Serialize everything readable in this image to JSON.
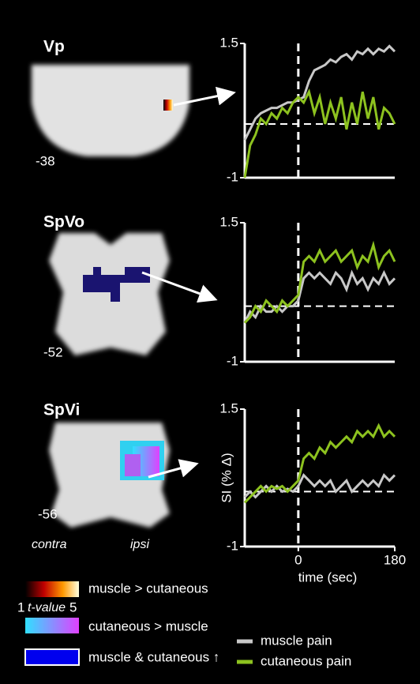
{
  "chart_data": [
    {
      "type": "line",
      "x": [
        -100,
        -90,
        -80,
        -70,
        -60,
        -50,
        -40,
        -30,
        -20,
        -10,
        0,
        10,
        20,
        30,
        40,
        50,
        60,
        70,
        80,
        90,
        100,
        110,
        120,
        130,
        140,
        150,
        160,
        170,
        180
      ],
      "xlim": [
        -100,
        180
      ],
      "ylim": [
        -1,
        1.5
      ],
      "yticks": [
        -1,
        1.5
      ],
      "reference_lines": {
        "x": 0,
        "y": 0
      },
      "series": [
        {
          "name": "muscle pain",
          "color": "#c8c8c8",
          "values": [
            -0.3,
            -0.1,
            0.1,
            0.2,
            0.25,
            0.3,
            0.3,
            0.35,
            0.4,
            0.4,
            0.45,
            0.5,
            0.8,
            1.0,
            1.05,
            1.1,
            1.2,
            1.15,
            1.25,
            1.3,
            1.2,
            1.35,
            1.3,
            1.4,
            1.3,
            1.4,
            1.35,
            1.45,
            1.35
          ]
        },
        {
          "name": "cutaneous pain",
          "color": "#8dc21f",
          "values": [
            -1,
            -0.4,
            -0.2,
            0.1,
            0,
            0.2,
            0.1,
            0.3,
            0.2,
            0.4,
            0.5,
            0.4,
            0.6,
            0.2,
            0.5,
            0,
            0.4,
            0.1,
            0.5,
            -0.1,
            0.4,
            0,
            0.6,
            0.1,
            0.5,
            -0.1,
            0.3,
            0.2,
            0
          ]
        }
      ]
    },
    {
      "type": "line",
      "x": [
        -100,
        -90,
        -80,
        -70,
        -60,
        -50,
        -40,
        -30,
        -20,
        -10,
        0,
        10,
        20,
        30,
        40,
        50,
        60,
        70,
        80,
        90,
        100,
        110,
        120,
        130,
        140,
        150,
        160,
        170,
        180
      ],
      "xlim": [
        -100,
        180
      ],
      "ylim": [
        -1,
        1.5
      ],
      "yticks": [
        -1,
        1.5
      ],
      "reference_lines": {
        "x": 0,
        "y": 0
      },
      "series": [
        {
          "name": "muscle pain",
          "color": "#c8c8c8",
          "values": [
            -0.3,
            -0.1,
            -0.2,
            0,
            -0.1,
            -0.1,
            0,
            -0.1,
            0,
            0,
            0.1,
            0.5,
            0.6,
            0.5,
            0.6,
            0.5,
            0.4,
            0.6,
            0.5,
            0.3,
            0.6,
            0.4,
            0.5,
            0.3,
            0.5,
            0.4,
            0.6,
            0.4,
            0.5
          ]
        },
        {
          "name": "cutaneous pain",
          "color": "#8dc21f",
          "values": [
            -0.3,
            -0.2,
            0,
            -0.1,
            0.1,
            0,
            -0.1,
            0.1,
            0,
            0.1,
            0.2,
            0.8,
            0.9,
            0.8,
            1.0,
            0.8,
            0.9,
            1.0,
            0.8,
            0.9,
            1.0,
            0.7,
            0.9,
            0.8,
            1.1,
            0.7,
            0.9,
            1.0,
            0.8
          ]
        }
      ]
    },
    {
      "type": "line",
      "x": [
        -100,
        -90,
        -80,
        -70,
        -60,
        -50,
        -40,
        -30,
        -20,
        -10,
        0,
        10,
        20,
        30,
        40,
        50,
        60,
        70,
        80,
        90,
        100,
        110,
        120,
        130,
        140,
        150,
        160,
        170,
        180
      ],
      "xlim": [
        -100,
        180
      ],
      "ylim": [
        -1,
        1.5
      ],
      "yticks": [
        -1,
        1.5
      ],
      "xticks": [
        0,
        180
      ],
      "reference_lines": {
        "x": 0,
        "y": 0
      },
      "y_label": "SI (% Δ)",
      "x_label": "time (sec)",
      "series": [
        {
          "name": "muscle pain",
          "color": "#c8c8c8",
          "values": [
            -0.1,
            0,
            -0.1,
            0,
            0.1,
            0,
            0.1,
            0,
            0.05,
            0,
            0.1,
            0.3,
            0.2,
            0.1,
            0.2,
            0.1,
            0.2,
            0,
            0.1,
            0.2,
            0,
            0.1,
            0.2,
            0.1,
            0.2,
            0.1,
            0.3,
            0.2,
            0.3
          ]
        },
        {
          "name": "cutaneous pain",
          "color": "#8dc21f",
          "values": [
            -0.2,
            -0.1,
            0,
            0.1,
            0,
            0.1,
            0.05,
            0.1,
            0,
            0.1,
            0.2,
            0.6,
            0.7,
            0.6,
            0.8,
            0.7,
            0.9,
            0.8,
            0.9,
            1.0,
            0.9,
            1.1,
            1.0,
            1.1,
            1.0,
            1.2,
            1.0,
            1.1,
            1.0
          ]
        }
      ]
    }
  ],
  "panels": [
    {
      "label": "Vp",
      "slice": "-38"
    },
    {
      "label": "SpVo",
      "slice": "-52"
    },
    {
      "label": "SpVi",
      "slice": "-56"
    }
  ],
  "orientation": {
    "left": "contra",
    "right": "ipsi"
  },
  "map_legend": {
    "muscle": "muscle > cutaneous",
    "cutaneous": "cutaneous > muscle",
    "both": "muscle & cutaneous ↑",
    "scale_min": "1",
    "scale_name": "t-value",
    "scale_max": "5"
  }
}
